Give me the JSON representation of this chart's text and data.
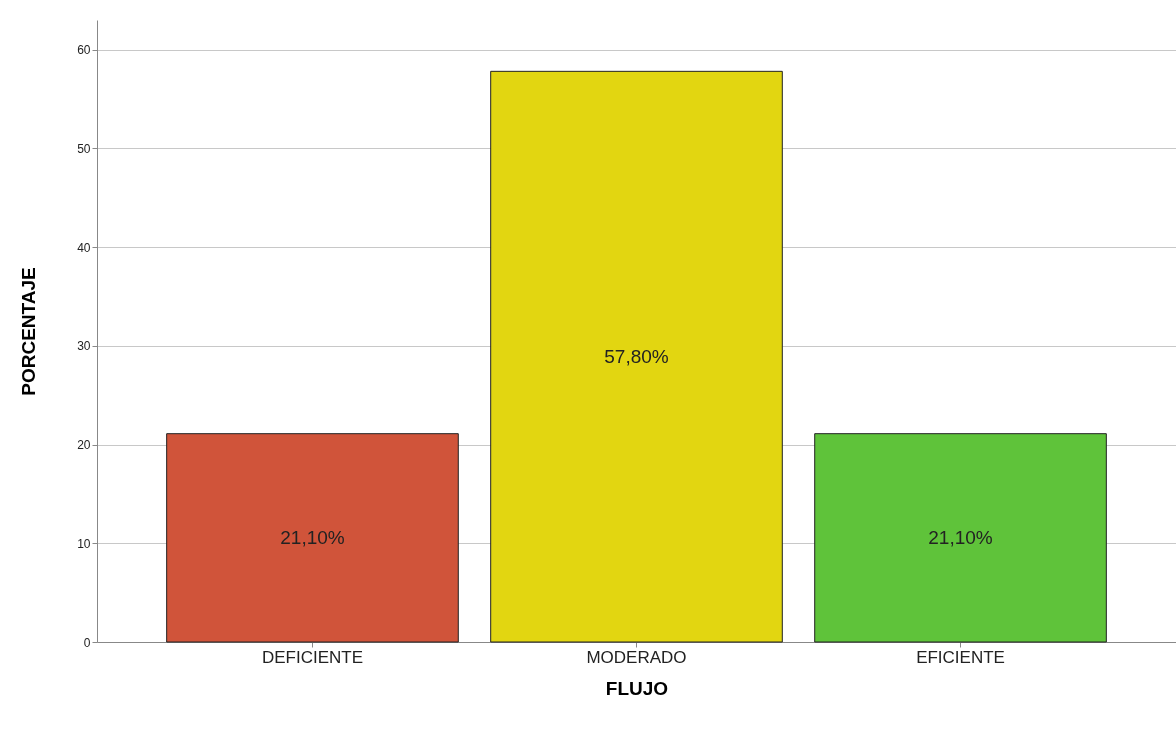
{
  "chart_data": {
    "type": "bar",
    "xlabel": "FLUJO",
    "ylabel": "PORCENTAJE",
    "categories": [
      "DEFICIENTE",
      "MODERADO",
      "EFICIENTE"
    ],
    "values": [
      21.1,
      57.8,
      21.1
    ],
    "colors": [
      "#d0543a",
      "#e2d611",
      "#5fc33a"
    ],
    "value_labels": [
      "21,10%",
      "57,80%",
      "21,10%"
    ],
    "ylim": [
      0,
      63
    ],
    "yticks": [
      0,
      10,
      20,
      30,
      40,
      50,
      60
    ],
    "grid": "y"
  }
}
